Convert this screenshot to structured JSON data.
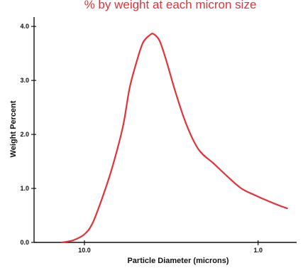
{
  "chart_data": {
    "type": "line",
    "title": "% by weight at each micron size",
    "xlabel": "Particle Diameter (microns)",
    "ylabel": "Weight Percent",
    "x_scale": "log",
    "x_direction": "decreasing",
    "xlim": [
      19.5,
      0.6
    ],
    "ylim": [
      0,
      4.2
    ],
    "x_ticks": [
      {
        "value": 10,
        "label": "10.0"
      },
      {
        "value": 1,
        "label": "1.0"
      }
    ],
    "y_ticks": [
      {
        "value": 0,
        "label": "0.0"
      },
      {
        "value": 1,
        "label": "1.0"
      },
      {
        "value": 2,
        "label": "2.0"
      },
      {
        "value": 3,
        "label": "3.0"
      },
      {
        "value": 4,
        "label": "4.0"
      }
    ],
    "grid": false,
    "legend": "none",
    "colors": {
      "line": "#e2323a",
      "title": "#e2323a",
      "axis": "#111111"
    },
    "series": [
      {
        "color": "#e2323a",
        "x": [
          13.5,
          11.6,
          10.0,
          9.0,
          7.9,
          6.9,
          6.0,
          5.5,
          5.0,
          4.6,
          4.2,
          4.0,
          3.7,
          3.4,
          3.0,
          2.6,
          2.2,
          1.8,
          1.5,
          1.25,
          1.05,
          0.88,
          0.75,
          0.68
        ],
        "y": [
          0.0,
          0.04,
          0.15,
          0.35,
          0.82,
          1.4,
          2.15,
          2.85,
          3.35,
          3.7,
          3.84,
          3.86,
          3.74,
          3.4,
          2.8,
          2.2,
          1.72,
          1.46,
          1.22,
          1.0,
          0.88,
          0.77,
          0.68,
          0.63
        ]
      }
    ]
  }
}
